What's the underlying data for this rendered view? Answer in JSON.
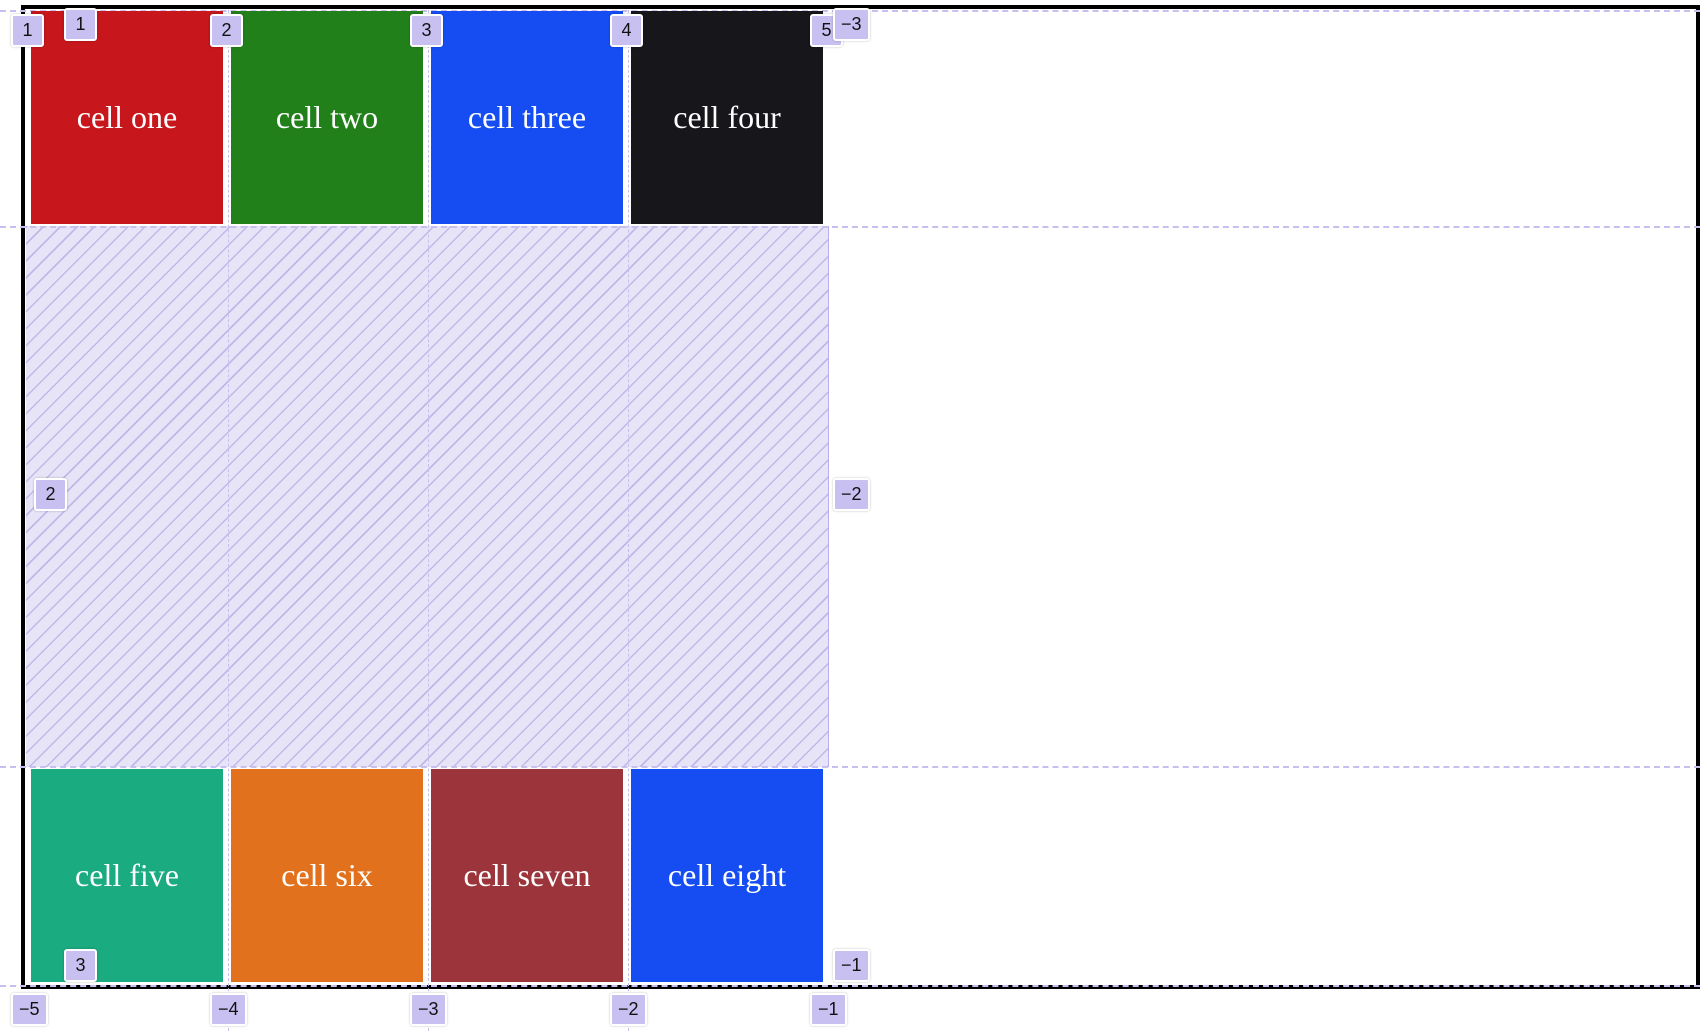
{
  "cells": [
    {
      "label": "cell one",
      "color": "#c7161c"
    },
    {
      "label": "cell two",
      "color": "#22801a"
    },
    {
      "label": "cell three",
      "color": "#154df2"
    },
    {
      "label": "cell four",
      "color": "#16161b"
    },
    {
      "label": "cell five",
      "color": "#1aab80"
    },
    {
      "label": "cell six",
      "color": "#e1711c"
    },
    {
      "label": "cell seven",
      "color": "#9b353b"
    },
    {
      "label": "cell eight",
      "color": "#154df2"
    }
  ],
  "grid_overlay": {
    "highlight_color": "#c8c0f0",
    "column_line_numbers_top": [
      "1",
      "2",
      "3",
      "4",
      "5"
    ],
    "column_line_numbers_bottom": [
      "−5",
      "−4",
      "−3",
      "−2",
      "−1"
    ],
    "row_line_numbers_left": [
      "1",
      "2",
      "3"
    ],
    "row_line_numbers_right": [
      "−3",
      "−2",
      "−1"
    ]
  }
}
